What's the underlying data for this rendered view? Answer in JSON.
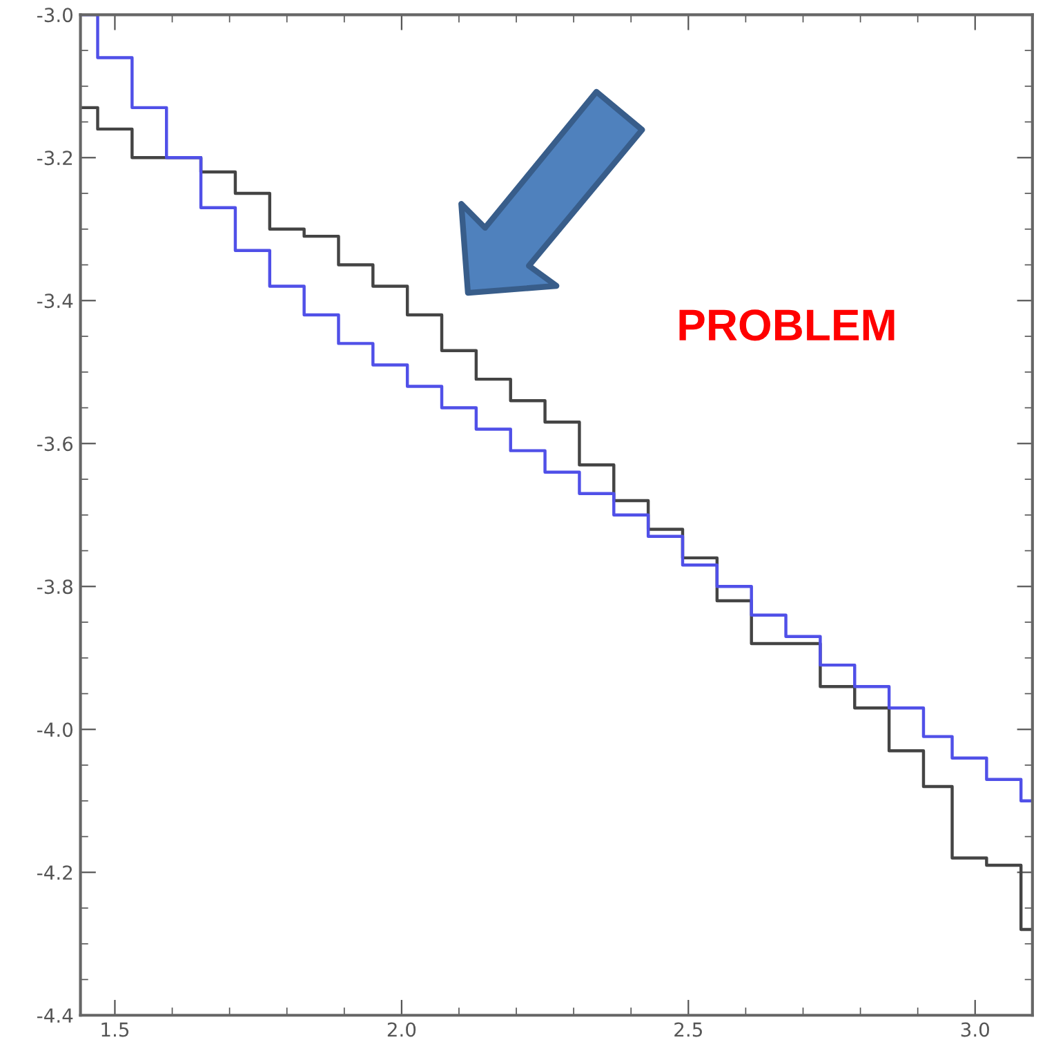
{
  "chart_data": {
    "type": "step",
    "x": [
      1.44,
      1.47,
      1.53,
      1.59,
      1.65,
      1.71,
      1.77,
      1.83,
      1.89,
      1.95,
      2.01,
      2.07,
      2.13,
      2.19,
      2.25,
      2.31,
      2.37,
      2.43,
      2.49,
      2.55,
      2.61,
      2.67,
      2.73,
      2.79,
      2.85,
      2.91,
      2.96,
      3.02,
      3.08,
      3.1
    ],
    "series": [
      {
        "color": "#444444",
        "values": [
          -3.13,
          -3.16,
          -3.2,
          -3.2,
          -3.22,
          -3.25,
          -3.3,
          -3.31,
          -3.35,
          -3.38,
          -3.42,
          -3.47,
          -3.51,
          -3.54,
          -3.57,
          -3.63,
          -3.68,
          -3.72,
          -3.76,
          -3.82,
          -3.88,
          -3.88,
          -3.94,
          -3.97,
          -4.03,
          -4.08,
          -4.18,
          -4.19,
          -4.28,
          -4.28
        ]
      },
      {
        "color": "#5050e8",
        "values": [
          -3.0,
          -3.06,
          -3.13,
          -3.2,
          -3.27,
          -3.33,
          -3.38,
          -3.42,
          -3.46,
          -3.49,
          -3.52,
          -3.55,
          -3.58,
          -3.61,
          -3.64,
          -3.67,
          -3.7,
          -3.73,
          -3.77,
          -3.8,
          -3.84,
          -3.87,
          -3.91,
          -3.94,
          -3.97,
          -4.01,
          -4.04,
          -4.07,
          -4.1,
          -4.1
        ]
      }
    ],
    "xlim": [
      1.44,
      3.1
    ],
    "ylim": [
      -4.4,
      -3.0
    ],
    "xticks": [
      1.5,
      {
        "value": 2,
        "label": "2.0"
      },
      2.5,
      {
        "value": 3,
        "label": "3.0"
      }
    ],
    "yticks": [
      -4.4,
      -4.2,
      {
        "value": -4,
        "label": "-4.0"
      },
      -3.8,
      -3.6,
      -3.4,
      -3.2,
      {
        "value": -3,
        "label": "-3.0"
      }
    ],
    "annotations": [
      "PROBLEM"
    ],
    "grid": false,
    "legend": false
  }
}
